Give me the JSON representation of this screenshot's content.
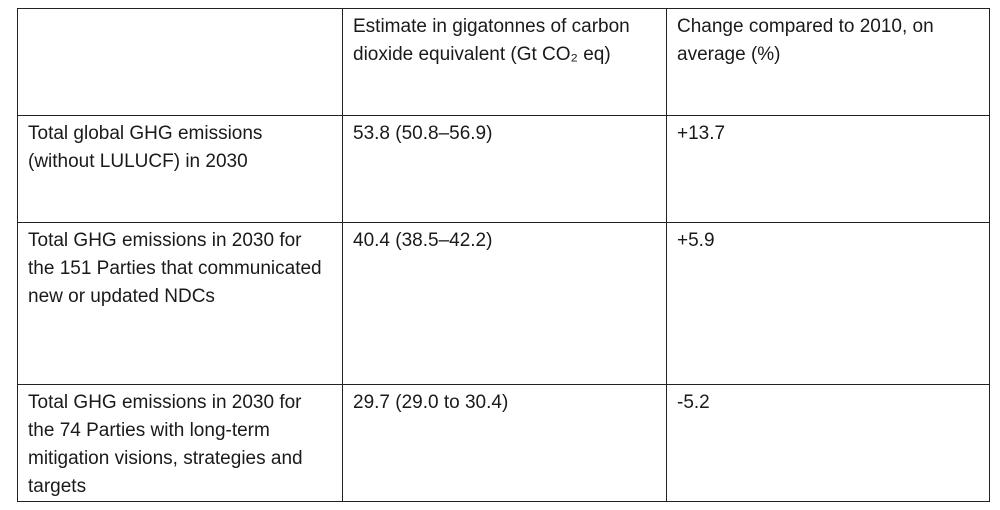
{
  "table": {
    "headers": [
      "",
      "Estimate in gigatonnes of carbon dioxide equivalent (Gt CO₂ eq)",
      "Change compared to 2010, on average (%)"
    ],
    "rows": [
      {
        "label": "Total global GHG emissions (without LULUCF) in 2030",
        "estimate": "53.8 (50.8–56.9)",
        "change": "+13.7"
      },
      {
        "label": "Total GHG emissions in 2030 for the 151 Parties that communicated new or updated NDCs",
        "estimate": "40.4 (38.5–42.2)",
        "change": "+5.9"
      },
      {
        "label": "Total GHG emissions in 2030 for the 74 Parties with long-term mitigation visions, strategies and targets",
        "estimate": "29.7 (29.0 to 30.4)",
        "change": "-5.2"
      }
    ]
  }
}
